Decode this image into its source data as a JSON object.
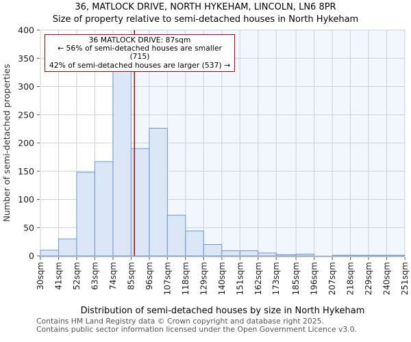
{
  "header": {
    "title": "36, MATLOCK DRIVE, NORTH HYKEHAM, LINCOLN, LN6 8PR",
    "subtitle": "Size of property relative to semi-detached houses in North Hykeham"
  },
  "annotation": {
    "line1": "36 MATLOCK DRIVE: 87sqm",
    "line2": "← 56% of semi-detached houses are smaller (715)",
    "line3": "42% of semi-detached houses are larger (537) →"
  },
  "chart_data": {
    "type": "bar",
    "title": "36, MATLOCK DRIVE, NORTH HYKEHAM, LINCOLN, LN6 8PR",
    "subtitle": "Size of property relative to semi-detached houses in North Hykeham",
    "xlabel": "Distribution of semi-detached houses by size in North Hykeham",
    "ylabel": "Number of semi-detached properties",
    "ylim": [
      0,
      400
    ],
    "ytick_step": 50,
    "ytick_labels": [
      "0",
      "50",
      "100",
      "150",
      "200",
      "250",
      "300",
      "350",
      "400"
    ],
    "bin_edges_sqm": [
      30,
      41,
      52,
      63,
      74,
      85,
      96,
      107,
      118,
      129,
      140,
      151,
      162,
      173,
      185,
      196,
      207,
      218,
      229,
      240,
      251
    ],
    "xtick_labels": [
      "30sqm",
      "41sqm",
      "52sqm",
      "63sqm",
      "74sqm",
      "85sqm",
      "96sqm",
      "107sqm",
      "118sqm",
      "129sqm",
      "140sqm",
      "151sqm",
      "162sqm",
      "173sqm",
      "185sqm",
      "196sqm",
      "207sqm",
      "218sqm",
      "229sqm",
      "240sqm",
      "251sqm"
    ],
    "values": [
      10,
      30,
      148,
      167,
      330,
      190,
      226,
      72,
      44,
      20,
      9,
      9,
      5,
      2,
      3,
      0,
      1,
      1,
      1,
      1
    ],
    "marker_sqm": 87,
    "grid": true,
    "legend": "none",
    "colors": {
      "bar_fill": "#dbe6f6",
      "bar_stroke": "#6b96cf",
      "marker_line": "#b40000",
      "shade_right_of_marker": "#f2f6fd",
      "grid": "#ccd0d8",
      "axis": "#b4b8c0",
      "tick": "#555555"
    }
  },
  "footer": {
    "line1": "Contains HM Land Registry data © Crown copyright and database right 2025.",
    "line2": "Contains public sector information licensed under the Open Government Licence v3.0."
  }
}
